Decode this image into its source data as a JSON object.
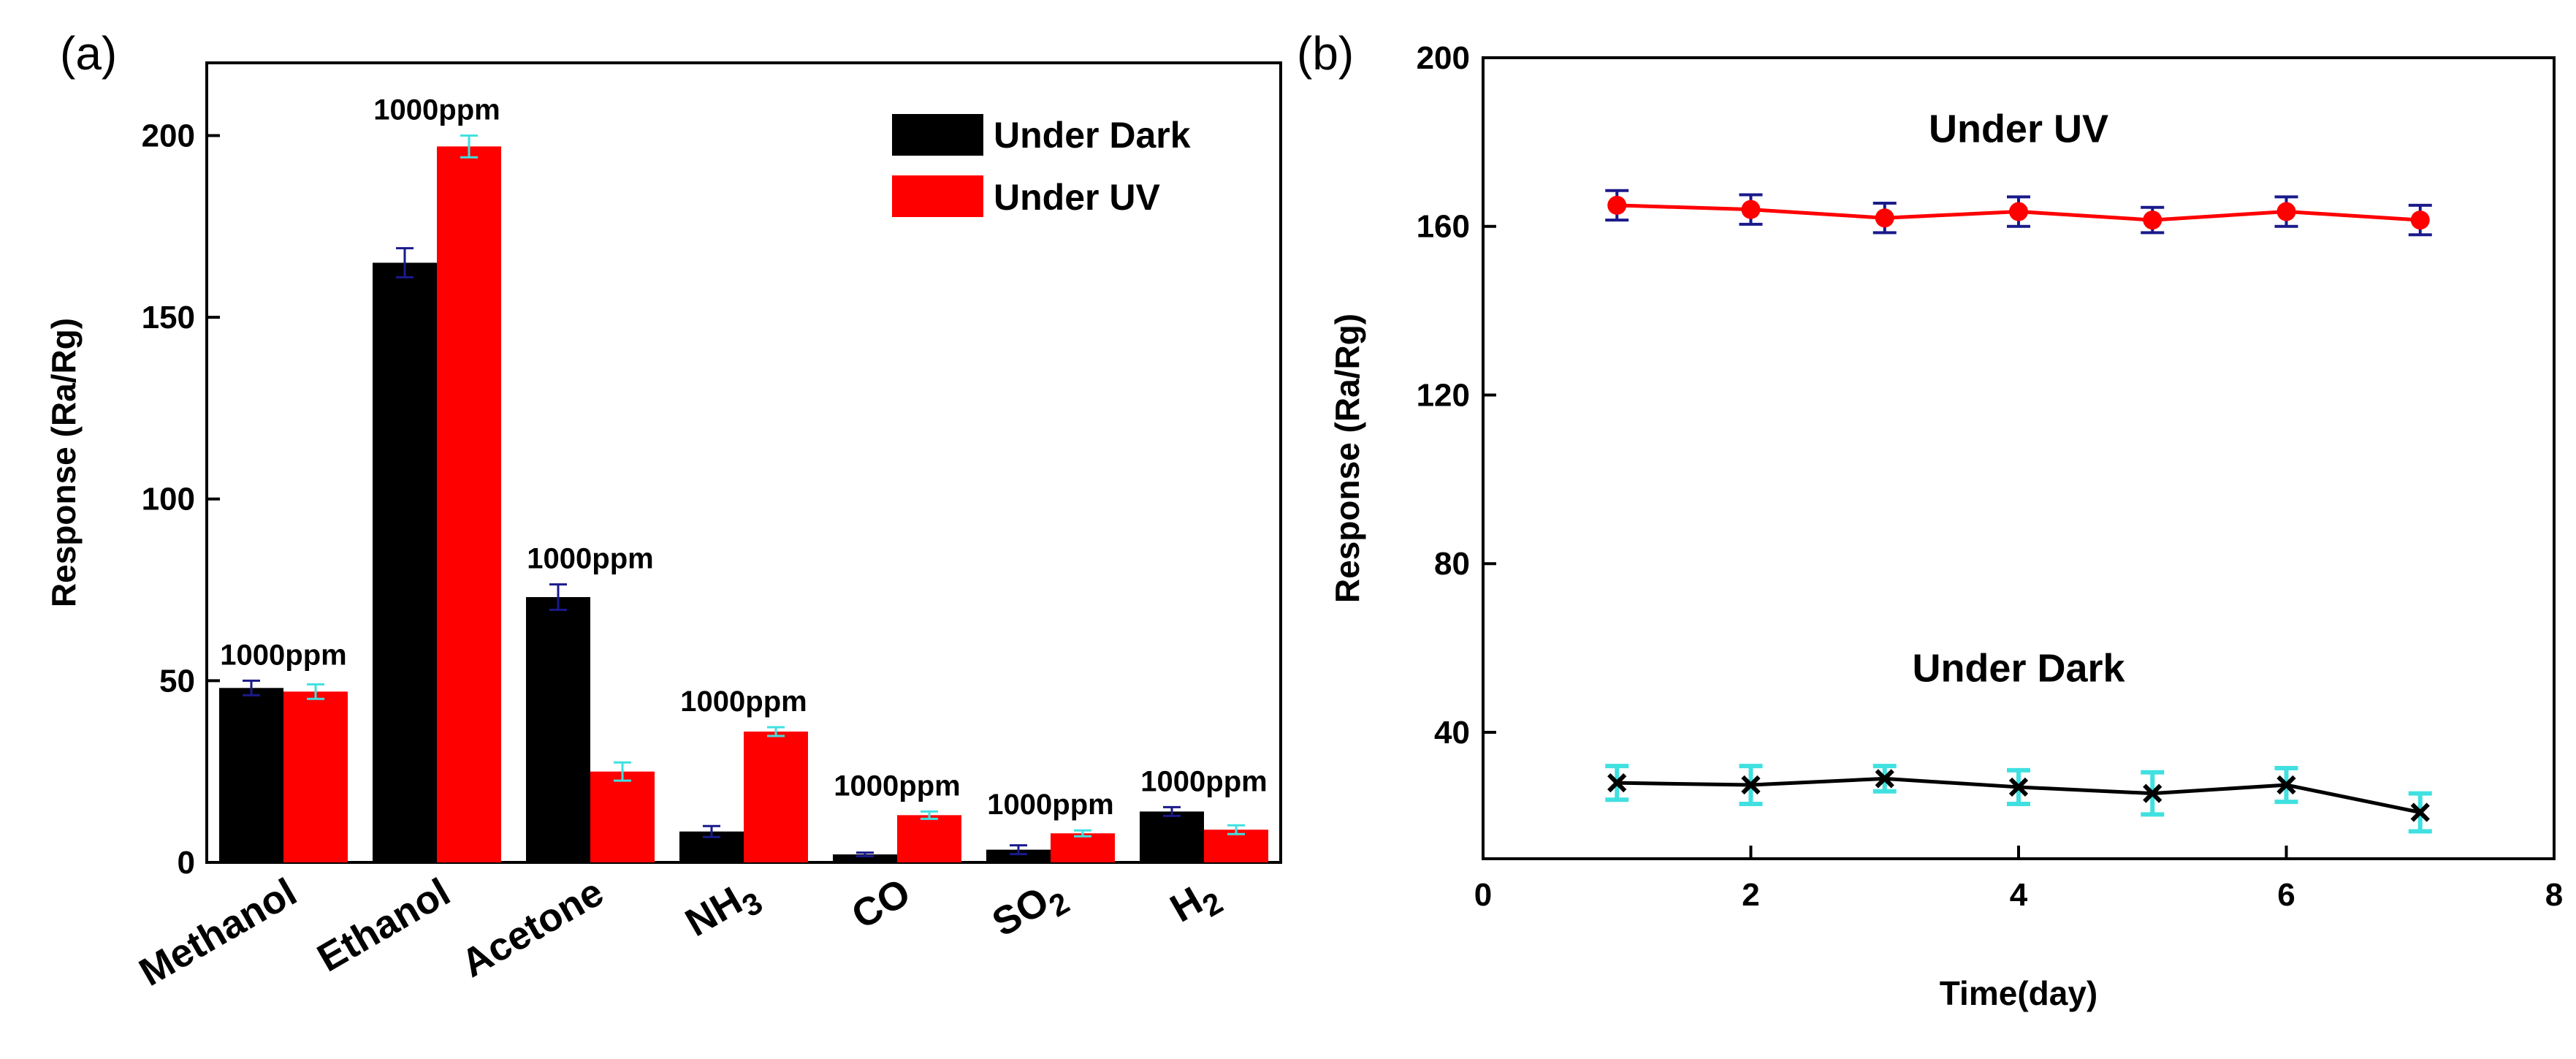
{
  "chart_data": [
    {
      "id": "a",
      "panel_label": "(a)",
      "type": "bar",
      "ylabel": "Response (Ra/Rg)",
      "xlabel": "",
      "ylim": [
        0,
        220
      ],
      "yticks": [
        0,
        50,
        100,
        150,
        200
      ],
      "categories": [
        {
          "key": "methanol",
          "text": "Methanol",
          "sub": ""
        },
        {
          "key": "ethanol",
          "text": "Ethanol",
          "sub": ""
        },
        {
          "key": "acetone",
          "text": "Acetone",
          "sub": ""
        },
        {
          "key": "nh3",
          "text": "NH",
          "sub": "3"
        },
        {
          "key": "co",
          "text": "CO",
          "sub": ""
        },
        {
          "key": "so2",
          "text": "SO",
          "sub": "2"
        },
        {
          "key": "h2",
          "text": "H",
          "sub": "2"
        }
      ],
      "series": [
        {
          "name": "Under Dark",
          "color": "#000000",
          "err_color": "#1a1a8c",
          "values": [
            48,
            165,
            73,
            8.5,
            2.2,
            3.5,
            14
          ],
          "errors": [
            2,
            4,
            3.5,
            1.5,
            0.5,
            1.2,
            1.2
          ]
        },
        {
          "name": "Under  UV",
          "color": "#ff0000",
          "err_color": "#40e0e0",
          "values": [
            47,
            197,
            25,
            36,
            13,
            8,
            9
          ],
          "errors": [
            2,
            3,
            2.5,
            1.2,
            1,
            0.8,
            1.2
          ]
        }
      ],
      "annotations": [
        {
          "text": "1000ppm",
          "category_index": 0
        },
        {
          "text": "1000ppm",
          "category_index": 1
        },
        {
          "text": "1000ppm",
          "category_index": 2
        },
        {
          "text": "1000ppm",
          "category_index": 3
        },
        {
          "text": "1000ppm",
          "category_index": 4
        },
        {
          "text": "1000ppm",
          "category_index": 5
        },
        {
          "text": "1000ppm",
          "category_index": 6
        }
      ],
      "legend": {
        "position": "top-right",
        "entries": [
          "Under Dark",
          "Under  UV"
        ]
      }
    },
    {
      "id": "b",
      "panel_label": "(b)",
      "type": "line",
      "ylabel": "Response (Ra/Rg)",
      "xlabel": "Time(day)",
      "xlim": [
        0,
        8
      ],
      "ylim": [
        10,
        200
      ],
      "xticks": [
        0,
        2,
        4,
        6,
        8
      ],
      "yticks": [
        40,
        80,
        120,
        160,
        200
      ],
      "x": [
        1,
        2,
        3,
        4,
        5,
        6,
        7
      ],
      "series": [
        {
          "name": "Under  UV",
          "color": "#ff0000",
          "err_color": "#1a1a8c",
          "marker": "circle",
          "values": [
            165,
            164,
            162,
            163.5,
            161.5,
            163.5,
            161.5
          ],
          "errors": [
            3.5,
            3.5,
            3.5,
            3.5,
            3,
            3.5,
            3.5
          ]
        },
        {
          "name": "Under  Dark",
          "color": "#000000",
          "err_color": "#40e0e0",
          "marker": "x",
          "values": [
            28,
            27.5,
            29,
            27,
            25.5,
            27.5,
            21
          ],
          "errors": [
            4,
            4.5,
            3,
            4,
            5,
            4,
            4.5
          ]
        }
      ],
      "series_labels": [
        {
          "text": "Under  UV",
          "x": 4,
          "y": 180
        },
        {
          "text": "Under  Dark",
          "x": 4,
          "y": 52
        }
      ]
    }
  ]
}
